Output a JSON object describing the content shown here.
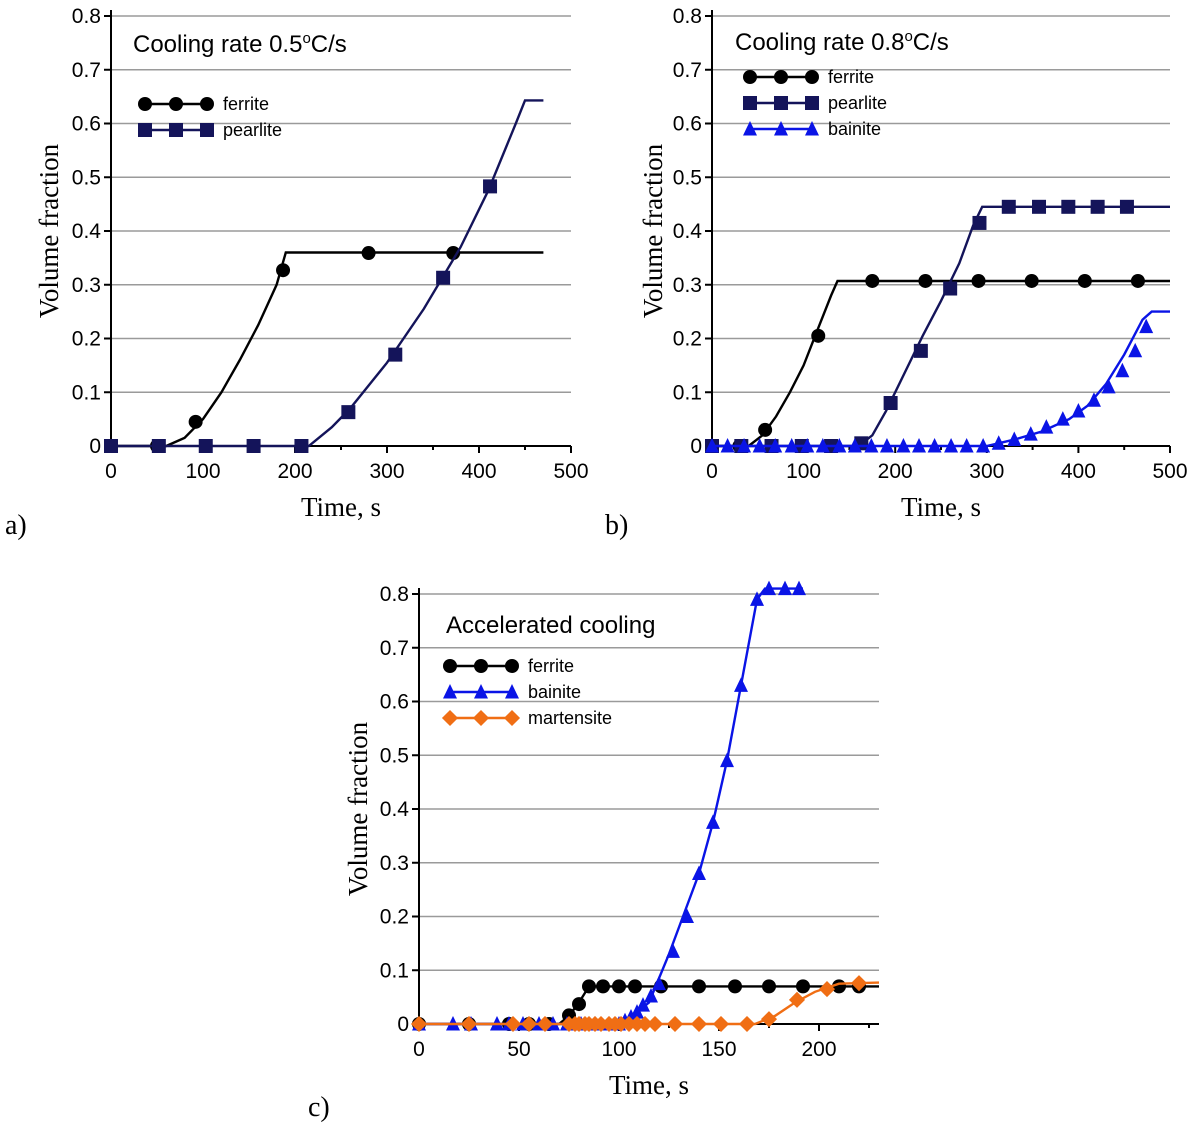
{
  "colors": {
    "ferrite": "#000000",
    "pearlite": "#14145a",
    "bainite": "#0a14e6",
    "martensite": "#f06e14",
    "grid": "#9a9a9a"
  },
  "chart_data": [
    {
      "panel_label": "a)",
      "type": "line",
      "annotation": "Cooling rate 0.5",
      "annotation_sup": "o",
      "annotation_unit": "C/s",
      "xlabel": "Time, s",
      "ylabel": "Volume fraction",
      "xlim": [
        0,
        500
      ],
      "ylim": [
        0,
        0.8
      ],
      "xticks": [
        "0",
        "100",
        "200",
        "300",
        "400",
        "500"
      ],
      "yticks": [
        "0",
        "0.1",
        "0.2",
        "0.3",
        "0.4",
        "0.5",
        "0.6",
        "0.7",
        "0.8"
      ],
      "grid": "horizontal",
      "legend_position": "top-left",
      "series": [
        {
          "name": "ferrite",
          "marker": "circle",
          "color": "#000000",
          "line": [
            [
              0,
              0
            ],
            [
              60,
              0
            ],
            [
              80,
              0.015
            ],
            [
              100,
              0.05
            ],
            [
              120,
              0.1
            ],
            [
              140,
              0.16
            ],
            [
              160,
              0.225
            ],
            [
              180,
              0.3
            ],
            [
              190,
              0.36
            ],
            [
              470,
              0.36
            ]
          ],
          "points": [
            [
              0,
              0
            ],
            [
              50,
              0
            ],
            [
              92,
              0.045
            ],
            [
              187,
              0.327
            ],
            [
              280,
              0.359
            ],
            [
              372,
              0.359
            ]
          ]
        },
        {
          "name": "pearlite",
          "marker": "square",
          "color": "#14145a",
          "line": [
            [
              0,
              0
            ],
            [
              215,
              0
            ],
            [
              240,
              0.035
            ],
            [
              260,
              0.07
            ],
            [
              300,
              0.155
            ],
            [
              340,
              0.255
            ],
            [
              380,
              0.37
            ],
            [
              410,
              0.475
            ],
            [
              440,
              0.6
            ],
            [
              450,
              0.643
            ],
            [
              470,
              0.643
            ]
          ],
          "points": [
            [
              0,
              0
            ],
            [
              52,
              0
            ],
            [
              103,
              0
            ],
            [
              155,
              0
            ],
            [
              207,
              0
            ],
            [
              258,
              0.063
            ],
            [
              309,
              0.17
            ],
            [
              361,
              0.313
            ],
            [
              412,
              0.483
            ]
          ]
        }
      ]
    },
    {
      "panel_label": "b)",
      "type": "line",
      "annotation": "Cooling rate 0.8",
      "annotation_sup": "o",
      "annotation_unit": "C/s",
      "xlabel": "Time, s",
      "ylabel": "Volume fraction",
      "xlim": [
        0,
        500
      ],
      "ylim": [
        0,
        0.8
      ],
      "xticks": [
        "0",
        "100",
        "200",
        "300",
        "400",
        "500"
      ],
      "yticks": [
        "0",
        "0.1",
        "0.2",
        "0.3",
        "0.4",
        "0.5",
        "0.6",
        "0.7",
        "0.8"
      ],
      "grid": "horizontal",
      "legend_position": "top-left",
      "series": [
        {
          "name": "ferrite",
          "marker": "circle",
          "color": "#000000",
          "line": [
            [
              0,
              0
            ],
            [
              40,
              0
            ],
            [
              55,
              0.02
            ],
            [
              70,
              0.055
            ],
            [
              85,
              0.1
            ],
            [
              100,
              0.15
            ],
            [
              115,
              0.215
            ],
            [
              130,
              0.28
            ],
            [
              137,
              0.307
            ],
            [
              500,
              0.307
            ]
          ],
          "points": [
            [
              0,
              0
            ],
            [
              30,
              0
            ],
            [
              58,
              0.03
            ],
            [
              116,
              0.205
            ],
            [
              175,
              0.307
            ],
            [
              233,
              0.307
            ],
            [
              291,
              0.307
            ],
            [
              349,
              0.307
            ],
            [
              407,
              0.307
            ],
            [
              465,
              0.307
            ]
          ]
        },
        {
          "name": "pearlite",
          "marker": "square",
          "color": "#14145a",
          "line": [
            [
              0,
              0
            ],
            [
              160,
              0
            ],
            [
              175,
              0.02
            ],
            [
              190,
              0.065
            ],
            [
              210,
              0.135
            ],
            [
              230,
              0.205
            ],
            [
              250,
              0.27
            ],
            [
              270,
              0.34
            ],
            [
              285,
              0.41
            ],
            [
              295,
              0.445
            ],
            [
              500,
              0.445
            ]
          ],
          "points": [
            [
              0,
              0
            ],
            [
              32,
              0
            ],
            [
              65,
              0
            ],
            [
              98,
              0
            ],
            [
              130,
              0
            ],
            [
              163,
              0.005
            ],
            [
              195,
              0.08
            ],
            [
              228,
              0.177
            ],
            [
              260,
              0.293
            ],
            [
              292,
              0.415
            ],
            [
              324,
              0.445
            ],
            [
              357,
              0.445
            ],
            [
              389,
              0.445
            ],
            [
              421,
              0.445
            ],
            [
              453,
              0.445
            ]
          ]
        },
        {
          "name": "bainite",
          "marker": "triangle",
          "color": "#0a14e6",
          "line": [
            [
              0,
              0
            ],
            [
              300,
              0
            ],
            [
              330,
              0.012
            ],
            [
              360,
              0.027
            ],
            [
              390,
              0.05
            ],
            [
              410,
              0.075
            ],
            [
              430,
              0.115
            ],
            [
              450,
              0.17
            ],
            [
              470,
              0.235
            ],
            [
              480,
              0.25
            ],
            [
              500,
              0.25
            ]
          ],
          "points": [
            [
              0,
              0
            ],
            [
              17,
              0
            ],
            [
              35,
              0
            ],
            [
              52,
              0
            ],
            [
              69,
              0
            ],
            [
              87,
              0
            ],
            [
              104,
              0
            ],
            [
              121,
              0
            ],
            [
              139,
              0
            ],
            [
              156,
              0
            ],
            [
              174,
              0
            ],
            [
              191,
              0
            ],
            [
              209,
              0
            ],
            [
              226,
              0
            ],
            [
              243,
              0
            ],
            [
              261,
              0
            ],
            [
              278,
              0
            ],
            [
              296,
              0
            ],
            [
              313,
              0.005
            ],
            [
              330,
              0.012
            ],
            [
              348,
              0.022
            ],
            [
              365,
              0.035
            ],
            [
              383,
              0.05
            ],
            [
              400,
              0.065
            ],
            [
              417,
              0.085
            ],
            [
              433,
              0.11
            ],
            [
              448,
              0.14
            ],
            [
              462,
              0.177
            ],
            [
              474,
              0.222
            ]
          ]
        }
      ]
    },
    {
      "panel_label": "c)",
      "type": "line",
      "annotation": "Accelerated cooling",
      "xlabel": "Time, s",
      "ylabel": "Volume fraction",
      "xlim": [
        0,
        230
      ],
      "ylim": [
        0,
        0.8
      ],
      "xticks": [
        "0",
        "50",
        "100",
        "150",
        "200"
      ],
      "yticks": [
        "0",
        "0.1",
        "0.2",
        "0.3",
        "0.4",
        "0.5",
        "0.6",
        "0.7",
        "0.8"
      ],
      "grid": "horizontal",
      "legend_position": "top-left",
      "series": [
        {
          "name": "ferrite",
          "marker": "circle",
          "color": "#000000",
          "line": [
            [
              0,
              0
            ],
            [
              70,
              0
            ],
            [
              75,
              0.015
            ],
            [
              80,
              0.04
            ],
            [
              85,
              0.07
            ],
            [
              230,
              0.07
            ]
          ],
          "points": [
            [
              0,
              0
            ],
            [
              25,
              0
            ],
            [
              45,
              0
            ],
            [
              55,
              0
            ],
            [
              65,
              0
            ],
            [
              75,
              0.016
            ],
            [
              80,
              0.037
            ],
            [
              85,
              0.07
            ],
            [
              92,
              0.07
            ],
            [
              100,
              0.07
            ],
            [
              108,
              0.07
            ],
            [
              121,
              0.07
            ],
            [
              140,
              0.07
            ],
            [
              158,
              0.07
            ],
            [
              175,
              0.07
            ],
            [
              192,
              0.07
            ],
            [
              210,
              0.07
            ],
            [
              220,
              0.07
            ]
          ]
        },
        {
          "name": "bainite",
          "marker": "triangle",
          "color": "#0a14e6",
          "line": [
            [
              0,
              0
            ],
            [
              95,
              0
            ],
            [
              105,
              0.01
            ],
            [
              115,
              0.04
            ],
            [
              125,
              0.13
            ],
            [
              132,
              0.2
            ],
            [
              140,
              0.28
            ],
            [
              147,
              0.375
            ],
            [
              154,
              0.49
            ],
            [
              161,
              0.63
            ],
            [
              169,
              0.79
            ],
            [
              173,
              0.81
            ],
            [
              192,
              0.81
            ]
          ],
          "points": [
            [
              0,
              0
            ],
            [
              17,
              0
            ],
            [
              26,
              0
            ],
            [
              39,
              0
            ],
            [
              45,
              0
            ],
            [
              52,
              0
            ],
            [
              60,
              0
            ],
            [
              67,
              0
            ],
            [
              74,
              0
            ],
            [
              81,
              0
            ],
            [
              88,
              0
            ],
            [
              95,
              0
            ],
            [
              100,
              0
            ],
            [
              103,
              0.006
            ],
            [
              106,
              0.013
            ],
            [
              109,
              0.022
            ],
            [
              112,
              0.035
            ],
            [
              116,
              0.052
            ],
            [
              120,
              0.075
            ],
            [
              127,
              0.135
            ],
            [
              134,
              0.2
            ],
            [
              140,
              0.28
            ],
            [
              147,
              0.375
            ],
            [
              154,
              0.49
            ],
            [
              161,
              0.63
            ],
            [
              169,
              0.79
            ],
            [
              175,
              0.81
            ],
            [
              183,
              0.81
            ],
            [
              190,
              0.81
            ]
          ]
        },
        {
          "name": "martensite",
          "marker": "diamond",
          "color": "#f06e14",
          "line": [
            [
              0,
              0
            ],
            [
              168,
              0
            ],
            [
              178,
              0.015
            ],
            [
              188,
              0.04
            ],
            [
              198,
              0.06
            ],
            [
              210,
              0.075
            ],
            [
              230,
              0.077
            ]
          ],
          "points": [
            [
              0,
              0
            ],
            [
              25,
              0
            ],
            [
              47,
              0
            ],
            [
              55,
              0
            ],
            [
              63,
              0
            ],
            [
              75,
              0
            ],
            [
              78,
              0
            ],
            [
              80,
              0
            ],
            [
              83,
              0
            ],
            [
              85,
              0
            ],
            [
              88,
              0
            ],
            [
              91,
              0
            ],
            [
              95,
              0
            ],
            [
              98,
              0
            ],
            [
              101,
              0
            ],
            [
              105,
              0
            ],
            [
              109,
              0
            ],
            [
              113,
              0
            ],
            [
              118,
              0
            ],
            [
              128,
              0
            ],
            [
              140,
              0
            ],
            [
              151,
              0
            ],
            [
              164,
              0
            ],
            [
              175,
              0.009
            ],
            [
              189,
              0.045
            ],
            [
              204,
              0.065
            ],
            [
              220,
              0.076
            ]
          ]
        }
      ]
    }
  ]
}
